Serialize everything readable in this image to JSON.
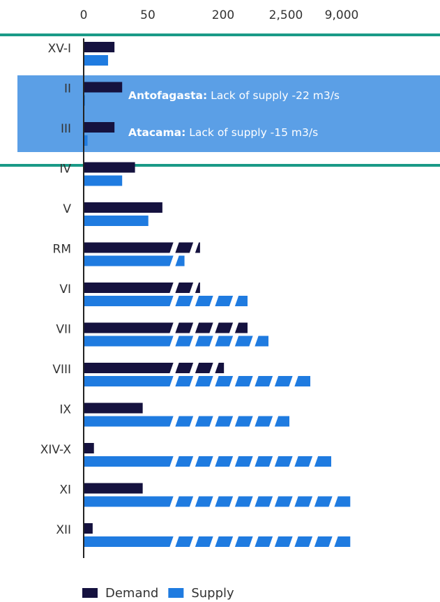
{
  "chart_data": {
    "type": "bar",
    "orientation": "horizontal",
    "categories": [
      "XV-I",
      "II",
      "III",
      "IV",
      "V",
      "RM",
      "VI",
      "VII",
      "VIII",
      "IX",
      "XIV-X",
      "XI",
      "XII"
    ],
    "series": [
      {
        "name": "Demand",
        "color": "#15123f",
        "values": [
          24,
          30,
          24,
          40,
          79,
          154,
          154,
          1094,
          230,
          46,
          8,
          46,
          7
        ]
      },
      {
        "name": "Supply",
        "color": "#1f7be0",
        "values": [
          19,
          1,
          3,
          30,
          51,
          123,
          1094,
          1861,
          5344,
          2906,
          7781,
          10000,
          10000
        ]
      }
    ],
    "xlim": [
      0,
      10000
    ],
    "xticks": [
      0,
      50,
      200,
      {
        "value": 2500,
        "label": "2,500"
      },
      {
        "value": 9000,
        "label": "9,000"
      }
    ],
    "annotations": [
      {
        "region": "Antofagasta:",
        "text": "Lack of supply -22 m3/s"
      },
      {
        "region": "Atacama:",
        "text": "Lack of supply -15 m3/s"
      }
    ],
    "legend": "bottom"
  }
}
